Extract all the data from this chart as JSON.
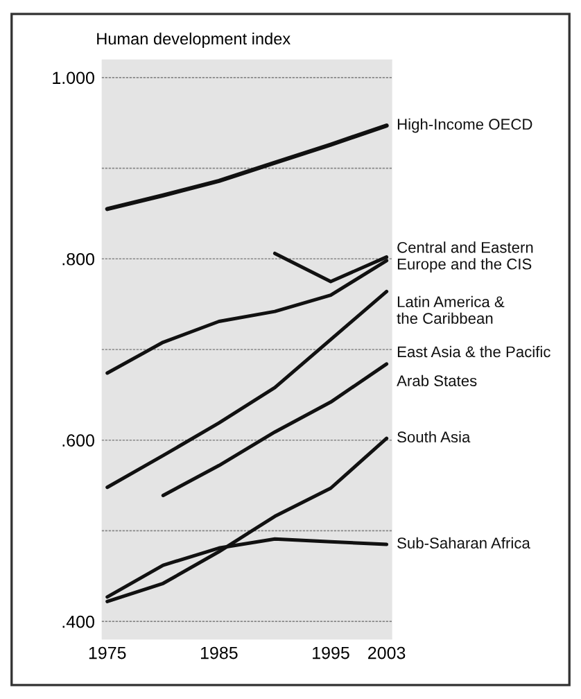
{
  "chart_data": {
    "type": "line",
    "ylabel": "Human development index",
    "categories": [
      "1975",
      null,
      "1985",
      null,
      "1995",
      "2003"
    ],
    "ylim": [
      0.38,
      1.02
    ],
    "yticks": [
      {
        "value": 0.4,
        "label": ".400"
      },
      {
        "value": 0.5,
        "label": null
      },
      {
        "value": 0.6,
        "label": ".600"
      },
      {
        "value": 0.7,
        "label": null
      },
      {
        "value": 0.8,
        "label": ".800"
      },
      {
        "value": 0.9,
        "label": null
      },
      {
        "value": 1.0,
        "label": "1.000"
      }
    ],
    "grid": "y",
    "legend": false,
    "series": [
      {
        "name": "High-Income OECD",
        "color": "#111111",
        "values": [
          0.855,
          0.87,
          0.886,
          0.906,
          0.926,
          0.947
        ]
      },
      {
        "name": "Central and Eastern\nEurope and the CIS",
        "color": "#111111",
        "values": [
          null,
          null,
          null,
          0.806,
          0.775,
          0.802
        ]
      },
      {
        "name": "Latin America &\nthe Caribbean",
        "color": "#111111",
        "values": [
          0.674,
          0.708,
          0.731,
          0.742,
          0.76,
          0.798
        ]
      },
      {
        "name": "East Asia & the Pacific",
        "color": "#111111",
        "values": [
          0.548,
          0.583,
          0.619,
          0.658,
          0.711,
          0.764
        ]
      },
      {
        "name": "Arab States",
        "color": "#111111",
        "values": [
          null,
          0.539,
          0.572,
          0.609,
          0.642,
          0.684
        ]
      },
      {
        "name": "South Asia",
        "color": "#111111",
        "values": [
          0.422,
          0.442,
          0.477,
          0.516,
          0.547,
          0.602
        ]
      },
      {
        "name": "Sub-Saharan Africa",
        "color": "#111111",
        "values": [
          0.427,
          0.462,
          0.481,
          0.491,
          0.488,
          0.485
        ]
      }
    ]
  }
}
